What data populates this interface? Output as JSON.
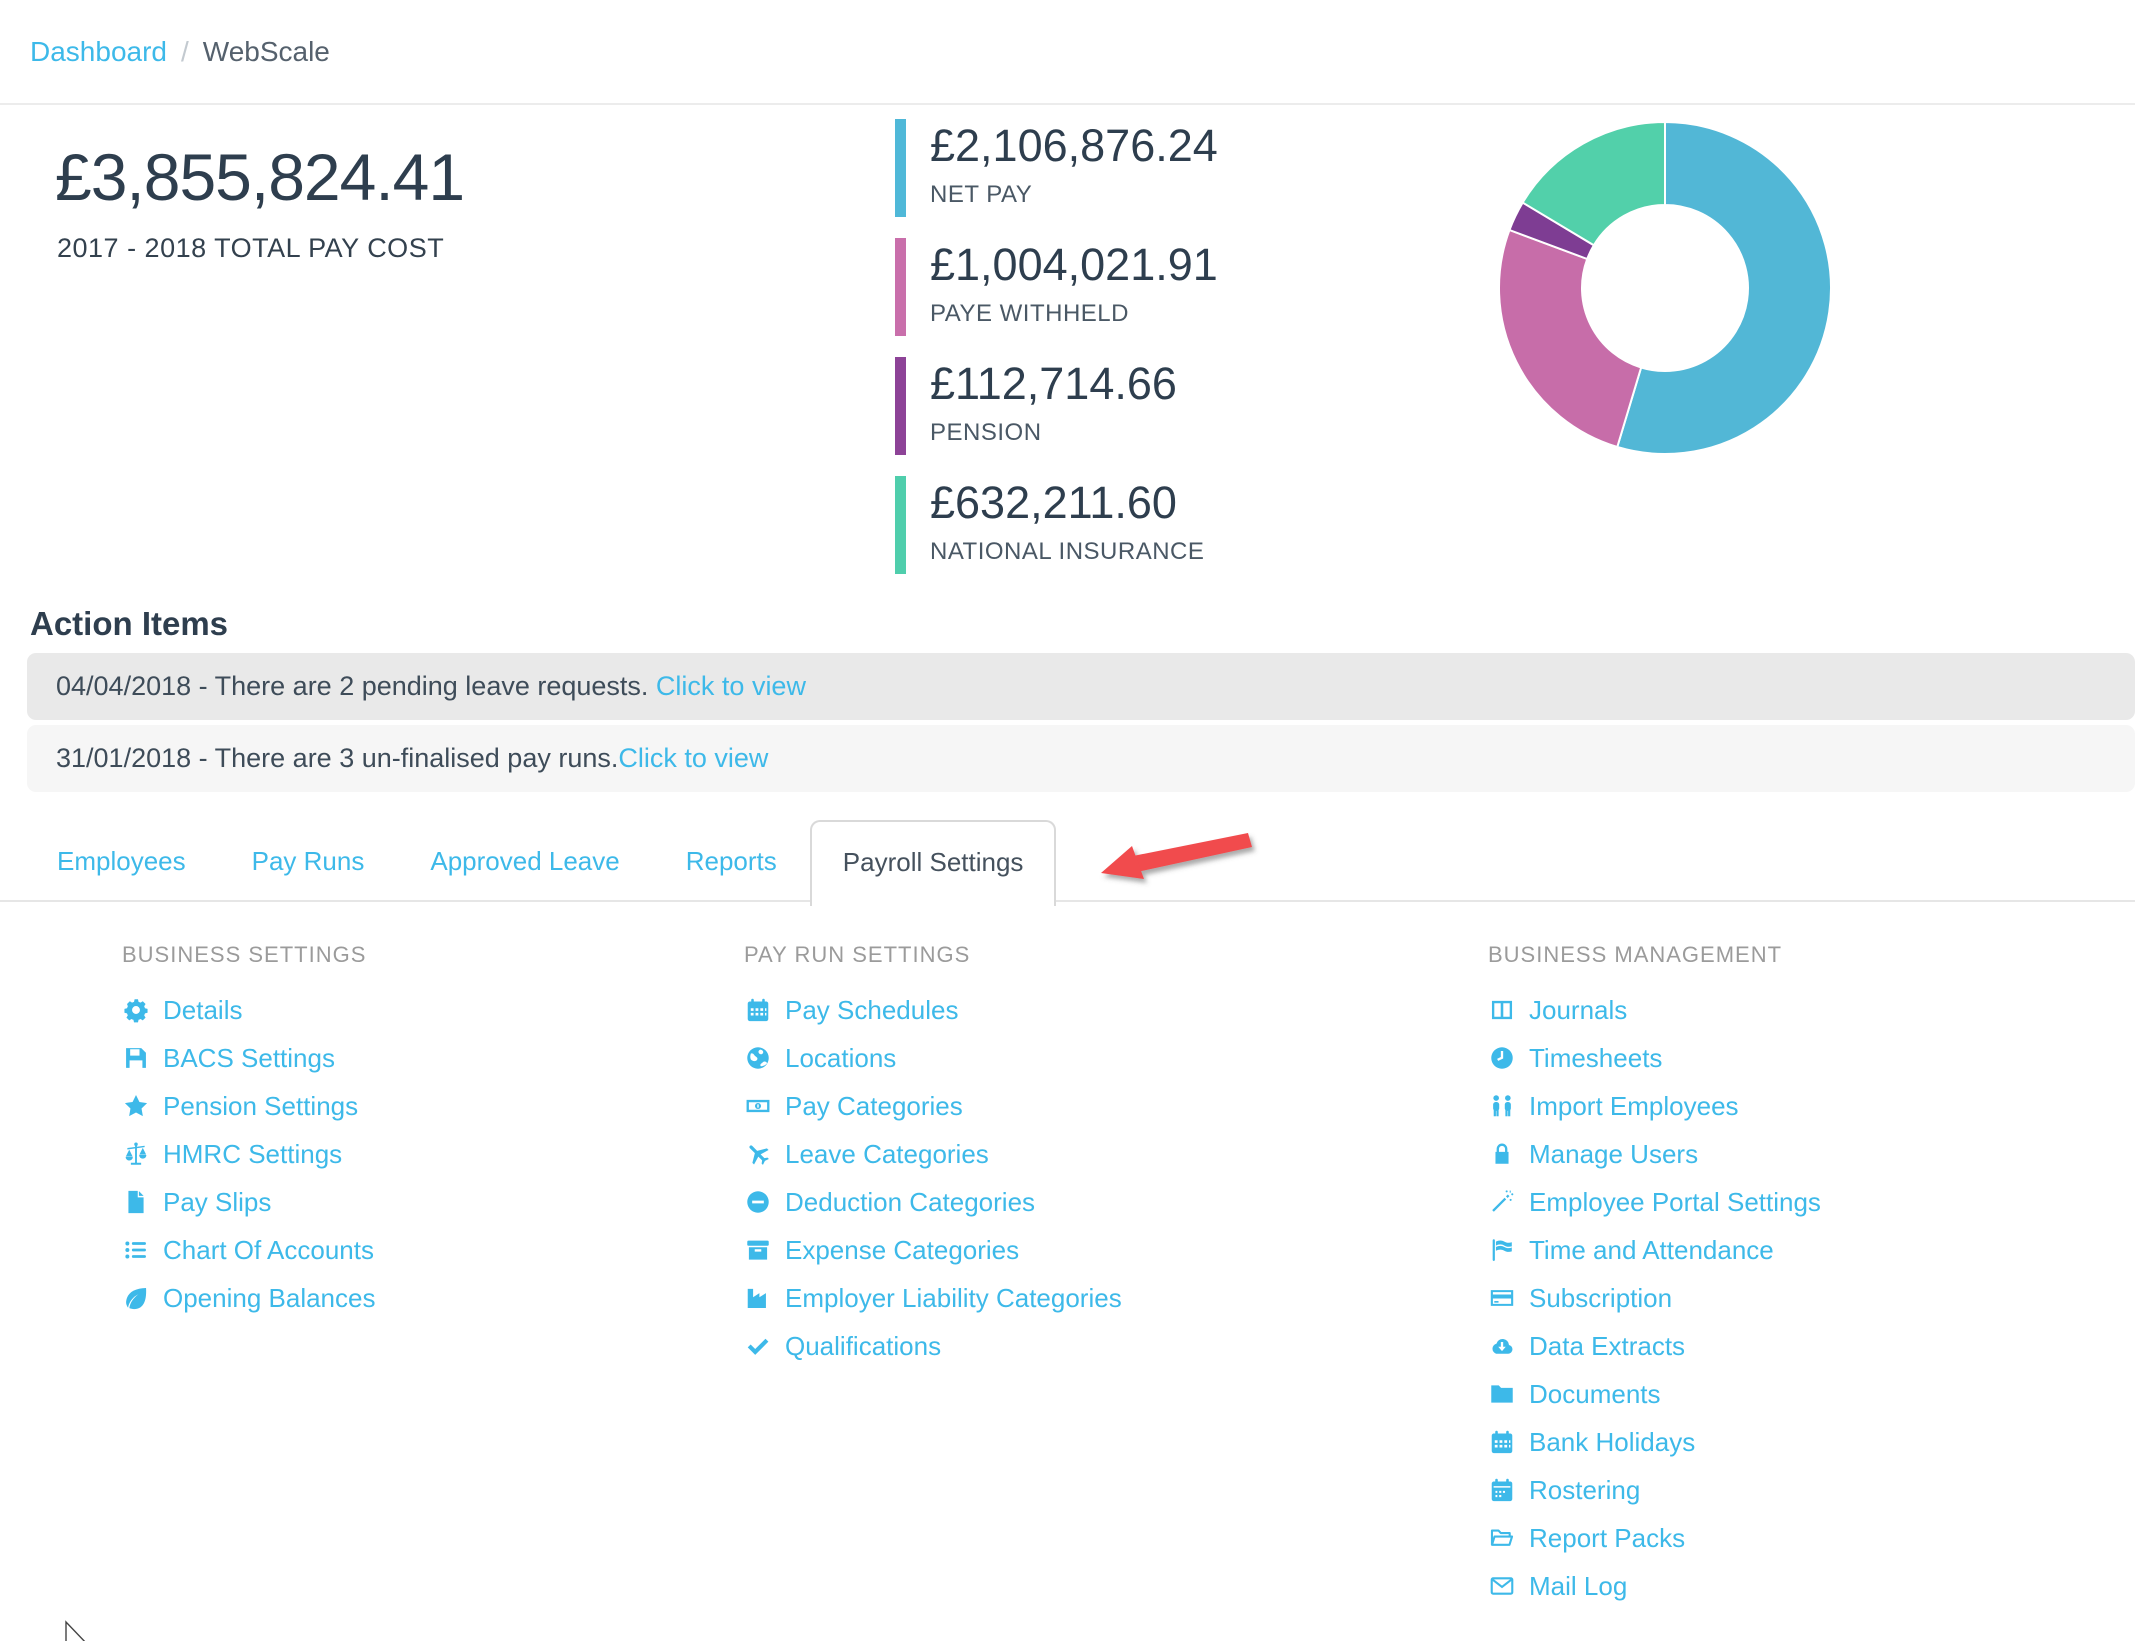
{
  "colors": {
    "link": "#3db9e9",
    "text_dark": "#2e3e4e",
    "heading_gray": "#9b9b9b",
    "row_dark_bg": "#e9e9e9",
    "row_light_bg": "#f6f6f6",
    "arrow_red": "#f14b4e"
  },
  "breadcrumb": {
    "separator": "/",
    "items": [
      {
        "label": "Dashboard"
      },
      {
        "label": "WebScale"
      }
    ]
  },
  "summary": {
    "total": "£3,855,824.41",
    "total_caption": "2017 - 2018 TOTAL PAY COST",
    "stats": [
      {
        "value": "£2,106,876.24",
        "label": "NET PAY",
        "color": "#4fb8d8"
      },
      {
        "value": "£1,004,021.91",
        "label": "PAYE WITHHELD",
        "color": "#c96fab"
      },
      {
        "value": "£112,714.66",
        "label": "PENSION",
        "color": "#8d4397"
      },
      {
        "value": "£632,211.60",
        "label": "NATIONAL INSURANCE",
        "color": "#4fceac"
      }
    ]
  },
  "chart_data": {
    "type": "pie",
    "variant": "donut",
    "labels": [
      "Net Pay",
      "PAYE Withheld",
      "Pension",
      "National Insurance"
    ],
    "values": [
      2106876.24,
      1004021.91,
      112714.66,
      632211.6
    ],
    "percentages": [
      54.6,
      26.0,
      2.9,
      16.4
    ],
    "colors": [
      "#52b7d6",
      "#c76da9",
      "#7e3d93",
      "#52d0aa"
    ],
    "total": 3855824.41,
    "title": "",
    "legend_position": "none",
    "start_angle_deg": 0,
    "direction": "clockwise"
  },
  "action_items": {
    "title": "Action Items",
    "items": [
      {
        "text": "04/04/2018 - There are 2 pending leave requests. ",
        "link": "Click to view"
      },
      {
        "text": "31/01/2018 - There are 3 un-finalised pay runs.",
        "link": "Click to view"
      }
    ]
  },
  "tabs": {
    "items": [
      "Employees",
      "Pay Runs",
      "Approved Leave",
      "Reports",
      "Payroll Settings"
    ],
    "active": "Payroll Settings"
  },
  "settings_panel": {
    "columns": [
      {
        "heading": "BUSINESS SETTINGS",
        "items": [
          {
            "icon": "gear",
            "label": "Details"
          },
          {
            "icon": "floppy-disk",
            "label": "BACS Settings"
          },
          {
            "icon": "star",
            "label": "Pension Settings"
          },
          {
            "icon": "balance-scale",
            "label": "HMRC Settings"
          },
          {
            "icon": "file",
            "label": "Pay Slips"
          },
          {
            "icon": "list",
            "label": "Chart Of Accounts"
          },
          {
            "icon": "leaf",
            "label": "Opening Balances"
          }
        ]
      },
      {
        "heading": "PAY RUN SETTINGS",
        "items": [
          {
            "icon": "calendar-grid",
            "label": "Pay Schedules"
          },
          {
            "icon": "globe",
            "label": "Locations"
          },
          {
            "icon": "money-bill",
            "label": "Pay Categories"
          },
          {
            "icon": "plane",
            "label": "Leave Categories"
          },
          {
            "icon": "minus-circle",
            "label": "Deduction Categories"
          },
          {
            "icon": "archive-box",
            "label": "Expense Categories"
          },
          {
            "icon": "industry",
            "label": "Employer Liability Categories"
          },
          {
            "icon": "check",
            "label": "Qualifications"
          }
        ]
      },
      {
        "heading": "BUSINESS MANAGEMENT",
        "items": [
          {
            "icon": "columns",
            "label": "Journals"
          },
          {
            "icon": "clock",
            "label": "Timesheets"
          },
          {
            "icon": "user-group",
            "label": "Import Employees"
          },
          {
            "icon": "lock",
            "label": "Manage Users"
          },
          {
            "icon": "magic-wand",
            "label": "Employee Portal Settings"
          },
          {
            "icon": "flag",
            "label": "Time and Attendance"
          },
          {
            "icon": "credit-card",
            "label": "Subscription"
          },
          {
            "icon": "cloud-download",
            "label": "Data Extracts"
          },
          {
            "icon": "folder",
            "label": "Documents"
          },
          {
            "icon": "calendar-grid",
            "label": "Bank Holidays"
          },
          {
            "icon": "calendar-days",
            "label": "Rostering"
          },
          {
            "icon": "folder-open",
            "label": "Report Packs"
          },
          {
            "icon": "envelope",
            "label": "Mail Log"
          }
        ]
      }
    ]
  }
}
